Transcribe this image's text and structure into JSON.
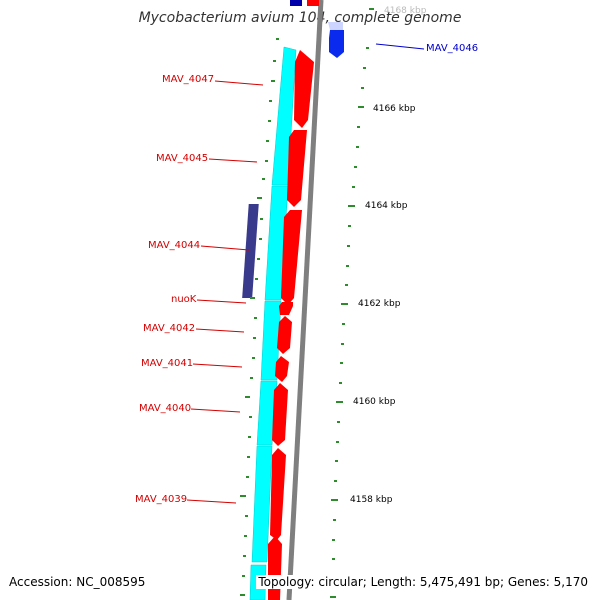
{
  "title": "Mycobacterium avium 104, complete genome",
  "footer": {
    "accession": "Accession: NC_008595",
    "topology": "Topology: circular; Length: 5,475,491 bp; Genes: 5,170"
  },
  "scale_ticks": [
    "4168 kbp",
    "4166 kbp",
    "4164 kbp",
    "4162 kbp",
    "4160 kbp",
    "4158 kbp"
  ],
  "genes_left": [
    {
      "label": "MAV_4047"
    },
    {
      "label": "MAV_4045"
    },
    {
      "label": "MAV_4044"
    },
    {
      "label": "nuoK"
    },
    {
      "label": "MAV_4042"
    },
    {
      "label": "MAV_4041"
    },
    {
      "label": "MAV_4040"
    },
    {
      "label": "MAV_4039"
    }
  ],
  "genes_right": [
    {
      "label": "MAV_4046"
    }
  ],
  "colors": {
    "cds_reverse": "#00ffff",
    "cds_forward": "#ff0000",
    "highlight_forward": "#0000ee",
    "highlight_reverse": "#333388",
    "backbone": "#808080",
    "ticks": "#2e8b2e",
    "label_red": "#d40000",
    "label_blue": "#0000cc"
  }
}
